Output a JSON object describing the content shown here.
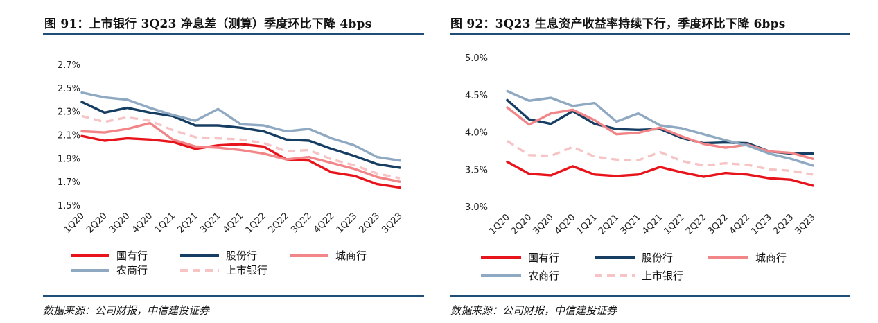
{
  "left": {
    "title": "图 91：上市银行 3Q23 净息差（测算）季度环比下降 4bps",
    "source_prefix": "数据来源：公司财报，",
    "source_org": "中信建投证券"
  },
  "right": {
    "title": "图 92：3Q23 生息资产收益率持续下行，季度环比下降 6bps",
    "source_prefix": "数据来源：公司财报，",
    "source_org": "中信建投证券"
  },
  "chart_data": [
    {
      "type": "line",
      "categories": [
        "1Q20",
        "2Q20",
        "3Q20",
        "4Q20",
        "1Q21",
        "2Q21",
        "3Q21",
        "4Q21",
        "1Q22",
        "2Q22",
        "3Q22",
        "4Q22",
        "1Q23",
        "2Q23",
        "3Q23"
      ],
      "ylim": [
        1.5,
        2.7
      ],
      "yticks": [
        "1.5%",
        "1.7%",
        "1.9%",
        "2.1%",
        "2.3%",
        "2.5%",
        "2.7%"
      ],
      "ytick_values": [
        1.5,
        1.7,
        1.9,
        2.1,
        2.3,
        2.5,
        2.7
      ],
      "grid": false,
      "legend_position": "bottom",
      "series": [
        {
          "name": "国有行",
          "color": "#e8141c",
          "dash": false,
          "values": [
            2.09,
            2.05,
            2.07,
            2.06,
            2.04,
            1.98,
            2.01,
            2.02,
            2.0,
            1.89,
            1.88,
            1.78,
            1.75,
            1.68,
            1.65
          ]
        },
        {
          "name": "股份行",
          "color": "#163e63",
          "dash": false,
          "values": [
            2.38,
            2.29,
            2.33,
            2.29,
            2.26,
            2.18,
            2.18,
            2.16,
            2.13,
            2.06,
            2.05,
            1.98,
            1.92,
            1.85,
            1.82
          ]
        },
        {
          "name": "城商行",
          "color": "#f28587",
          "dash": false,
          "values": [
            2.13,
            2.12,
            2.15,
            2.2,
            2.06,
            2.0,
            1.99,
            1.97,
            1.94,
            1.89,
            1.91,
            1.86,
            1.81,
            1.74,
            1.7
          ]
        },
        {
          "name": "农商行",
          "color": "#8ea9c1",
          "dash": false,
          "values": [
            2.46,
            2.42,
            2.4,
            2.33,
            2.27,
            2.22,
            2.32,
            2.19,
            2.18,
            2.13,
            2.15,
            2.07,
            2.01,
            1.91,
            1.88
          ]
        },
        {
          "name": "上市银行",
          "color": "#f7c4c5",
          "dash": true,
          "values": [
            2.26,
            2.21,
            2.25,
            2.22,
            2.14,
            2.08,
            2.07,
            2.06,
            2.03,
            1.96,
            1.97,
            1.89,
            1.84,
            1.77,
            1.73
          ]
        }
      ]
    },
    {
      "type": "line",
      "categories": [
        "1Q20",
        "2Q20",
        "3Q20",
        "4Q20",
        "1Q21",
        "2Q21",
        "3Q21",
        "4Q21",
        "1Q22",
        "2Q22",
        "3Q22",
        "4Q22",
        "1Q23",
        "2Q23",
        "3Q23"
      ],
      "ylim": [
        3.0,
        5.0
      ],
      "yticks": [
        "3.0%",
        "3.5%",
        "4.0%",
        "4.5%",
        "5.0%"
      ],
      "ytick_values": [
        3.0,
        3.5,
        4.0,
        4.5,
        5.0
      ],
      "grid": false,
      "legend_position": "bottom",
      "series": [
        {
          "name": "国有行",
          "color": "#e8141c",
          "dash": false,
          "values": [
            3.6,
            3.44,
            3.42,
            3.54,
            3.43,
            3.41,
            3.43,
            3.53,
            3.46,
            3.4,
            3.45,
            3.43,
            3.38,
            3.36,
            3.28
          ]
        },
        {
          "name": "股份行",
          "color": "#163e63",
          "dash": false,
          "values": [
            4.43,
            4.17,
            4.11,
            4.28,
            4.11,
            4.04,
            4.03,
            4.04,
            3.92,
            3.85,
            3.86,
            3.85,
            3.74,
            3.71,
            3.71
          ]
        },
        {
          "name": "城商行",
          "color": "#f28587",
          "dash": false,
          "values": [
            4.33,
            4.1,
            4.25,
            4.3,
            4.16,
            3.97,
            3.99,
            4.06,
            3.94,
            3.84,
            3.79,
            3.83,
            3.74,
            3.72,
            3.64
          ]
        },
        {
          "name": "农商行",
          "color": "#8ea9c1",
          "dash": false,
          "values": [
            4.55,
            4.42,
            4.46,
            4.35,
            4.39,
            4.14,
            4.25,
            4.09,
            4.05,
            3.97,
            3.89,
            3.82,
            3.71,
            3.64,
            3.55
          ]
        },
        {
          "name": "上市银行",
          "color": "#f7c4c5",
          "dash": true,
          "values": [
            3.88,
            3.69,
            3.68,
            3.8,
            3.67,
            3.63,
            3.62,
            3.73,
            3.61,
            3.55,
            3.58,
            3.56,
            3.5,
            3.48,
            3.43
          ]
        }
      ]
    }
  ]
}
